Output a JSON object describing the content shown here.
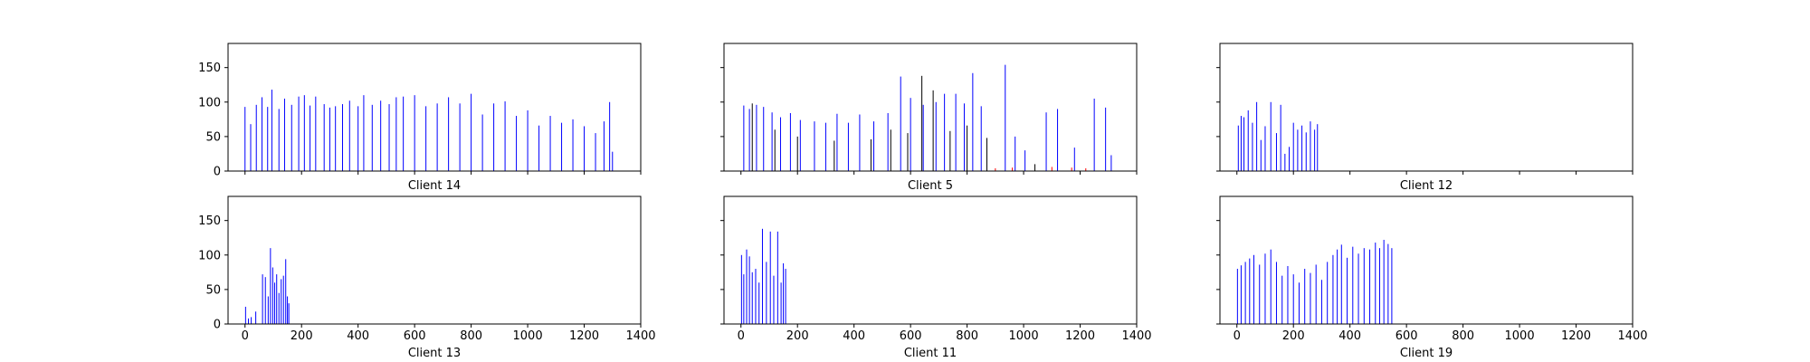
{
  "figure": {
    "background": "#ffffff"
  },
  "chart_data": [
    {
      "type": "bar",
      "title": "",
      "xlabel": "Client 14",
      "ylabel": "",
      "xlim": [
        -60,
        1400
      ],
      "ylim": [
        0,
        185
      ],
      "xticks": [
        0,
        200,
        400,
        600,
        800,
        1000,
        1200,
        1400
      ],
      "yticks": [
        0,
        50,
        100,
        150
      ],
      "show_x_tick_labels": false,
      "show_y_tick_labels": true,
      "grid": false,
      "legend": "none",
      "series": [
        {
          "color": "#0000ff",
          "points": [
            [
              0,
              93
            ],
            [
              20,
              68
            ],
            [
              40,
              96
            ],
            [
              60,
              107
            ],
            [
              80,
              93
            ],
            [
              95,
              118
            ],
            [
              120,
              90
            ],
            [
              140,
              105
            ],
            [
              165,
              96
            ],
            [
              190,
              108
            ],
            [
              210,
              110
            ],
            [
              230,
              95
            ],
            [
              250,
              108
            ],
            [
              280,
              97
            ],
            [
              300,
              92
            ],
            [
              320,
              94
            ],
            [
              345,
              97
            ],
            [
              370,
              102
            ],
            [
              400,
              94
            ],
            [
              420,
              110
            ],
            [
              450,
              96
            ],
            [
              480,
              102
            ],
            [
              510,
              97
            ],
            [
              535,
              107
            ],
            [
              560,
              108
            ],
            [
              600,
              110
            ],
            [
              640,
              94
            ],
            [
              680,
              98
            ],
            [
              720,
              107
            ],
            [
              760,
              98
            ],
            [
              800,
              112
            ],
            [
              840,
              82
            ],
            [
              880,
              98
            ],
            [
              920,
              101
            ],
            [
              960,
              80
            ],
            [
              1000,
              88
            ],
            [
              1040,
              66
            ],
            [
              1080,
              80
            ],
            [
              1120,
              70
            ],
            [
              1160,
              75
            ],
            [
              1200,
              65
            ],
            [
              1240,
              55
            ],
            [
              1270,
              72
            ],
            [
              1290,
              100
            ],
            [
              1300,
              28
            ]
          ]
        }
      ]
    },
    {
      "type": "bar",
      "title": "",
      "xlabel": "Client 5",
      "ylabel": "",
      "xlim": [
        -60,
        1400
      ],
      "ylim": [
        0,
        185
      ],
      "xticks": [
        0,
        200,
        400,
        600,
        800,
        1000,
        1200,
        1400
      ],
      "yticks": [
        0,
        50,
        100,
        150
      ],
      "show_x_tick_labels": false,
      "show_y_tick_labels": false,
      "grid": false,
      "legend": "none",
      "series": [
        {
          "color": "#0000ff",
          "points": [
            [
              10,
              95
            ],
            [
              30,
              90
            ],
            [
              55,
              96
            ],
            [
              80,
              93
            ],
            [
              110,
              85
            ],
            [
              140,
              78
            ],
            [
              175,
              84
            ],
            [
              210,
              74
            ],
            [
              260,
              72
            ],
            [
              300,
              70
            ],
            [
              340,
              83
            ],
            [
              380,
              70
            ],
            [
              420,
              82
            ],
            [
              470,
              72
            ],
            [
              520,
              84
            ],
            [
              565,
              137
            ],
            [
              600,
              106
            ],
            [
              645,
              96
            ],
            [
              690,
              100
            ],
            [
              720,
              112
            ],
            [
              760,
              112
            ],
            [
              790,
              98
            ],
            [
              820,
              142
            ],
            [
              850,
              94
            ],
            [
              935,
              154
            ],
            [
              970,
              50
            ],
            [
              1005,
              30
            ],
            [
              1080,
              85
            ],
            [
              1120,
              90
            ],
            [
              1180,
              34
            ],
            [
              1250,
              105
            ],
            [
              1290,
              92
            ],
            [
              1310,
              23
            ]
          ]
        },
        {
          "color": "#000000",
          "points": [
            [
              40,
              98
            ],
            [
              120,
              60
            ],
            [
              200,
              50
            ],
            [
              330,
              44
            ],
            [
              460,
              46
            ],
            [
              530,
              60
            ],
            [
              590,
              55
            ],
            [
              640,
              138
            ],
            [
              680,
              117
            ],
            [
              740,
              58
            ],
            [
              800,
              66
            ],
            [
              870,
              48
            ],
            [
              1040,
              10
            ]
          ]
        },
        {
          "color": "#ff0000",
          "points": [
            [
              900,
              4
            ],
            [
              960,
              5
            ],
            [
              1100,
              6
            ],
            [
              1170,
              5
            ],
            [
              1220,
              4
            ]
          ]
        }
      ]
    },
    {
      "type": "bar",
      "title": "",
      "xlabel": "Client 12",
      "ylabel": "",
      "xlim": [
        -60,
        1400
      ],
      "ylim": [
        0,
        185
      ],
      "xticks": [
        0,
        200,
        400,
        600,
        800,
        1000,
        1200,
        1400
      ],
      "yticks": [
        0,
        50,
        100,
        150
      ],
      "show_x_tick_labels": false,
      "show_y_tick_labels": false,
      "grid": false,
      "legend": "none",
      "series": [
        {
          "color": "#0000ff",
          "points": [
            [
              5,
              66
            ],
            [
              15,
              80
            ],
            [
              25,
              78
            ],
            [
              40,
              88
            ],
            [
              55,
              70
            ],
            [
              70,
              100
            ],
            [
              85,
              45
            ],
            [
              100,
              65
            ],
            [
              120,
              100
            ],
            [
              140,
              55
            ],
            [
              155,
              96
            ],
            [
              170,
              25
            ],
            [
              185,
              35
            ],
            [
              200,
              70
            ],
            [
              215,
              60
            ],
            [
              230,
              66
            ],
            [
              245,
              56
            ],
            [
              260,
              72
            ],
            [
              275,
              60
            ],
            [
              285,
              68
            ]
          ]
        }
      ]
    },
    {
      "type": "bar",
      "title": "",
      "xlabel": "Client 13",
      "ylabel": "",
      "xlim": [
        -60,
        1400
      ],
      "ylim": [
        0,
        185
      ],
      "xticks": [
        0,
        200,
        400,
        600,
        800,
        1000,
        1200,
        1400
      ],
      "yticks": [
        0,
        50,
        100,
        150
      ],
      "show_x_tick_labels": true,
      "show_y_tick_labels": true,
      "grid": false,
      "legend": "none",
      "series": [
        {
          "color": "#0000ff",
          "points": [
            [
              2,
              25
            ],
            [
              12,
              8
            ],
            [
              22,
              10
            ],
            [
              38,
              18
            ],
            [
              62,
              72
            ],
            [
              72,
              68
            ],
            [
              82,
              40
            ],
            [
              90,
              110
            ],
            [
              98,
              82
            ],
            [
              105,
              60
            ],
            [
              112,
              72
            ],
            [
              120,
              45
            ],
            [
              128,
              65
            ],
            [
              136,
              70
            ],
            [
              144,
              94
            ],
            [
              150,
              40
            ],
            [
              155,
              30
            ]
          ]
        }
      ]
    },
    {
      "type": "bar",
      "title": "",
      "xlabel": "Client 11",
      "ylabel": "",
      "xlim": [
        -60,
        1400
      ],
      "ylim": [
        0,
        185
      ],
      "xticks": [
        0,
        200,
        400,
        600,
        800,
        1000,
        1200,
        1400
      ],
      "yticks": [
        0,
        50,
        100,
        150
      ],
      "show_x_tick_labels": true,
      "show_y_tick_labels": false,
      "grid": false,
      "legend": "none",
      "series": [
        {
          "color": "#0000ff",
          "points": [
            [
              2,
              100
            ],
            [
              10,
              72
            ],
            [
              20,
              108
            ],
            [
              30,
              98
            ],
            [
              40,
              75
            ],
            [
              52,
              80
            ],
            [
              64,
              60
            ],
            [
              76,
              138
            ],
            [
              90,
              90
            ],
            [
              104,
              134
            ],
            [
              116,
              70
            ],
            [
              130,
              134
            ],
            [
              142,
              60
            ],
            [
              150,
              88
            ],
            [
              158,
              80
            ]
          ]
        }
      ]
    },
    {
      "type": "bar",
      "title": "",
      "xlabel": "Client 19",
      "ylabel": "",
      "xlim": [
        -60,
        1400
      ],
      "ylim": [
        0,
        185
      ],
      "xticks": [
        0,
        200,
        400,
        600,
        800,
        1000,
        1200,
        1400
      ],
      "yticks": [
        0,
        50,
        100,
        150
      ],
      "show_x_tick_labels": true,
      "show_y_tick_labels": false,
      "grid": false,
      "legend": "none",
      "series": [
        {
          "color": "#0000ff",
          "points": [
            [
              2,
              80
            ],
            [
              15,
              85
            ],
            [
              30,
              90
            ],
            [
              45,
              95
            ],
            [
              60,
              100
            ],
            [
              80,
              86
            ],
            [
              100,
              102
            ],
            [
              120,
              108
            ],
            [
              140,
              90
            ],
            [
              160,
              70
            ],
            [
              180,
              84
            ],
            [
              200,
              72
            ],
            [
              220,
              60
            ],
            [
              240,
              80
            ],
            [
              260,
              74
            ],
            [
              280,
              86
            ],
            [
              300,
              64
            ],
            [
              320,
              90
            ],
            [
              340,
              100
            ],
            [
              355,
              108
            ],
            [
              370,
              115
            ],
            [
              390,
              96
            ],
            [
              410,
              112
            ],
            [
              430,
              102
            ],
            [
              450,
              110
            ],
            [
              470,
              108
            ],
            [
              490,
              118
            ],
            [
              505,
              110
            ],
            [
              520,
              122
            ],
            [
              535,
              116
            ],
            [
              548,
              110
            ]
          ]
        }
      ]
    }
  ]
}
